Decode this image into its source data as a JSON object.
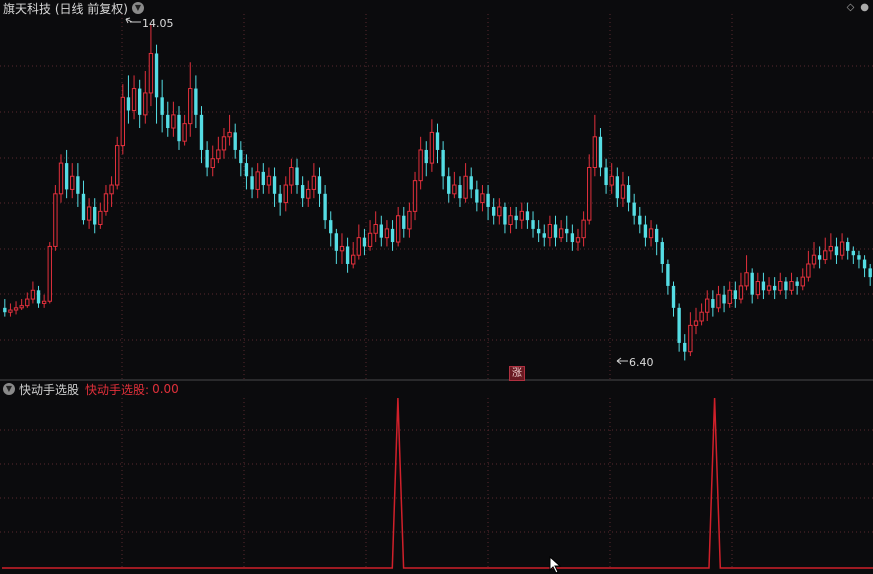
{
  "main_chart": {
    "title": "旗天科技 (日线 前复权)",
    "high_label": "14.05",
    "low_label": "6.40",
    "event_badge": "涨"
  },
  "indicator": {
    "name": "快动手选股",
    "value_label": "快动手选股:",
    "value": "0.00"
  },
  "colors": {
    "up": "#e2303c",
    "down": "#55dde4",
    "signal": "#d0202a",
    "grid": "#5a2a2e",
    "background": "#0b0b0d"
  },
  "chart_data": [
    {
      "type": "candlestick",
      "title": "旗天科技 (日线 前复权)",
      "ylim": [
        6.0,
        14.3
      ],
      "annotations": [
        "14.05",
        "6.40"
      ],
      "candles": [
        [
          7.6,
          7.5,
          7.8,
          7.4
        ],
        [
          7.5,
          7.55,
          7.7,
          7.4
        ],
        [
          7.55,
          7.6,
          7.75,
          7.45
        ],
        [
          7.6,
          7.65,
          7.8,
          7.55
        ],
        [
          7.65,
          7.8,
          7.95,
          7.6
        ],
        [
          7.8,
          8.0,
          8.2,
          7.7
        ],
        [
          8.0,
          7.7,
          8.1,
          7.6
        ],
        [
          7.7,
          7.75,
          7.9,
          7.6
        ],
        [
          7.75,
          9.0,
          9.1,
          7.7
        ],
        [
          9.0,
          10.2,
          10.4,
          8.9
        ],
        [
          10.2,
          10.9,
          11.1,
          10.0
        ],
        [
          10.9,
          10.3,
          11.2,
          10.1
        ],
        [
          10.3,
          10.6,
          10.9,
          10.1
        ],
        [
          10.6,
          10.2,
          10.9,
          9.9
        ],
        [
          10.2,
          9.6,
          10.5,
          9.5
        ],
        [
          9.6,
          9.9,
          10.1,
          9.4
        ],
        [
          9.9,
          9.5,
          10.1,
          9.3
        ],
        [
          9.5,
          9.8,
          10.0,
          9.4
        ],
        [
          9.8,
          10.2,
          10.4,
          9.7
        ],
        [
          10.2,
          10.4,
          10.6,
          9.9
        ],
        [
          10.4,
          11.3,
          11.5,
          10.3
        ],
        [
          11.3,
          12.4,
          12.7,
          11.1
        ],
        [
          12.4,
          12.1,
          12.9,
          11.8
        ],
        [
          12.1,
          12.6,
          12.9,
          11.9
        ],
        [
          12.6,
          12.0,
          12.8,
          11.7
        ],
        [
          12.0,
          12.5,
          13.0,
          11.8
        ],
        [
          12.5,
          13.4,
          14.05,
          12.2
        ],
        [
          13.4,
          12.4,
          13.6,
          11.8
        ],
        [
          12.4,
          12.0,
          12.8,
          11.6
        ],
        [
          12.0,
          11.7,
          12.3,
          11.5
        ],
        [
          11.7,
          12.0,
          12.3,
          11.5
        ],
        [
          12.0,
          11.4,
          12.2,
          11.2
        ],
        [
          11.4,
          11.8,
          12.0,
          11.3
        ],
        [
          11.8,
          12.6,
          13.2,
          11.5
        ],
        [
          12.6,
          12.0,
          12.9,
          11.7
        ],
        [
          12.0,
          11.2,
          12.2,
          10.9
        ],
        [
          11.2,
          10.8,
          11.4,
          10.6
        ],
        [
          10.8,
          11.0,
          11.3,
          10.6
        ],
        [
          11.0,
          11.2,
          11.5,
          10.9
        ],
        [
          11.2,
          11.5,
          11.7,
          11.0
        ],
        [
          11.5,
          11.6,
          12.0,
          11.3
        ],
        [
          11.6,
          11.2,
          11.8,
          11.0
        ],
        [
          11.2,
          10.9,
          11.4,
          10.6
        ],
        [
          10.9,
          10.6,
          11.1,
          10.3
        ],
        [
          10.6,
          10.3,
          10.8,
          10.1
        ],
        [
          10.3,
          10.7,
          10.9,
          10.1
        ],
        [
          10.7,
          10.4,
          10.9,
          10.2
        ],
        [
          10.4,
          10.6,
          10.8,
          10.2
        ],
        [
          10.6,
          10.2,
          10.8,
          9.9
        ],
        [
          10.2,
          10.0,
          10.4,
          9.7
        ],
        [
          10.0,
          10.4,
          10.6,
          9.8
        ],
        [
          10.4,
          10.8,
          11.0,
          10.2
        ],
        [
          10.8,
          10.4,
          11.0,
          10.2
        ],
        [
          10.4,
          10.1,
          10.6,
          9.9
        ],
        [
          10.1,
          10.3,
          10.5,
          9.9
        ],
        [
          10.3,
          10.6,
          10.9,
          10.1
        ],
        [
          10.6,
          10.2,
          10.8,
          9.9
        ],
        [
          10.2,
          9.6,
          10.4,
          9.4
        ],
        [
          9.6,
          9.3,
          9.8,
          9.0
        ],
        [
          9.3,
          8.9,
          9.4,
          8.6
        ],
        [
          8.9,
          9.0,
          9.3,
          8.6
        ],
        [
          9.0,
          8.6,
          9.2,
          8.4
        ],
        [
          8.6,
          8.8,
          9.1,
          8.5
        ],
        [
          8.8,
          9.2,
          9.5,
          8.7
        ],
        [
          9.2,
          9.0,
          9.4,
          8.8
        ],
        [
          9.0,
          9.3,
          9.6,
          8.9
        ],
        [
          9.3,
          9.5,
          9.8,
          9.1
        ],
        [
          9.5,
          9.2,
          9.7,
          9.0
        ],
        [
          9.2,
          9.4,
          9.6,
          9.0
        ],
        [
          9.4,
          9.1,
          9.6,
          8.9
        ],
        [
          9.1,
          9.7,
          9.9,
          9.0
        ],
        [
          9.7,
          9.4,
          9.9,
          9.2
        ],
        [
          9.4,
          9.8,
          10.0,
          9.2
        ],
        [
          9.8,
          10.5,
          10.7,
          9.6
        ],
        [
          10.5,
          11.2,
          11.5,
          10.3
        ],
        [
          11.2,
          10.9,
          11.4,
          10.6
        ],
        [
          10.9,
          11.6,
          11.9,
          10.7
        ],
        [
          11.6,
          11.2,
          11.8,
          10.9
        ],
        [
          11.2,
          10.6,
          11.4,
          10.3
        ],
        [
          10.6,
          10.2,
          10.8,
          10.0
        ],
        [
          10.2,
          10.4,
          10.7,
          10.1
        ],
        [
          10.4,
          10.1,
          10.6,
          9.9
        ],
        [
          10.1,
          10.6,
          10.9,
          10.0
        ],
        [
          10.6,
          10.3,
          10.8,
          10.1
        ],
        [
          10.3,
          10.0,
          10.5,
          9.8
        ],
        [
          10.0,
          10.2,
          10.4,
          9.8
        ],
        [
          10.2,
          9.9,
          10.4,
          9.6
        ],
        [
          9.9,
          9.7,
          10.1,
          9.5
        ],
        [
          9.7,
          9.9,
          10.1,
          9.5
        ],
        [
          9.9,
          9.5,
          10.0,
          9.3
        ],
        [
          9.5,
          9.7,
          9.9,
          9.3
        ],
        [
          9.7,
          9.6,
          9.9,
          9.4
        ],
        [
          9.6,
          9.8,
          10.0,
          9.4
        ],
        [
          9.8,
          9.6,
          10.0,
          9.4
        ],
        [
          9.6,
          9.4,
          9.8,
          9.2
        ],
        [
          9.4,
          9.3,
          9.6,
          9.1
        ],
        [
          9.3,
          9.2,
          9.5,
          9.0
        ],
        [
          9.2,
          9.5,
          9.7,
          9.0
        ],
        [
          9.5,
          9.2,
          9.7,
          9.0
        ],
        [
          9.2,
          9.4,
          9.6,
          9.1
        ],
        [
          9.4,
          9.3,
          9.7,
          9.1
        ],
        [
          9.3,
          9.1,
          9.5,
          8.9
        ],
        [
          9.1,
          9.2,
          9.4,
          8.9
        ],
        [
          9.2,
          9.6,
          9.8,
          9.0
        ],
        [
          9.6,
          10.8,
          11.1,
          9.5
        ],
        [
          10.8,
          11.5,
          12.0,
          10.6
        ],
        [
          11.5,
          10.8,
          11.7,
          10.6
        ],
        [
          10.8,
          10.4,
          11.0,
          10.2
        ],
        [
          10.4,
          10.6,
          10.9,
          10.2
        ],
        [
          10.6,
          10.1,
          10.8,
          9.9
        ],
        [
          10.1,
          10.4,
          10.7,
          9.9
        ],
        [
          10.4,
          10.0,
          10.6,
          9.8
        ],
        [
          10.0,
          9.7,
          10.2,
          9.5
        ],
        [
          9.7,
          9.5,
          9.9,
          9.3
        ],
        [
          9.5,
          9.2,
          9.7,
          9.0
        ],
        [
          9.2,
          9.4,
          9.6,
          9.0
        ],
        [
          9.4,
          9.1,
          9.5,
          8.8
        ],
        [
          9.1,
          8.6,
          9.2,
          8.4
        ],
        [
          8.6,
          8.1,
          8.7,
          7.9
        ],
        [
          8.1,
          7.6,
          8.2,
          7.4
        ],
        [
          7.6,
          6.8,
          7.7,
          6.6
        ],
        [
          6.8,
          6.6,
          7.0,
          6.4
        ],
        [
          6.6,
          7.2,
          7.5,
          6.5
        ],
        [
          7.2,
          7.3,
          7.6,
          7.0
        ],
        [
          7.3,
          7.5,
          7.7,
          7.2
        ],
        [
          7.5,
          7.8,
          8.0,
          7.3
        ],
        [
          7.8,
          7.6,
          8.0,
          7.4
        ],
        [
          7.6,
          7.9,
          8.1,
          7.5
        ],
        [
          7.9,
          7.7,
          8.1,
          7.5
        ],
        [
          7.7,
          8.0,
          8.2,
          7.6
        ],
        [
          8.0,
          7.8,
          8.2,
          7.6
        ],
        [
          7.8,
          8.1,
          8.4,
          7.7
        ],
        [
          8.1,
          8.4,
          8.8,
          8.0
        ],
        [
          8.4,
          7.9,
          8.5,
          7.7
        ],
        [
          7.9,
          8.2,
          8.4,
          7.8
        ],
        [
          8.2,
          8.0,
          8.4,
          7.8
        ],
        [
          8.0,
          8.1,
          8.3,
          7.9
        ],
        [
          8.1,
          8.0,
          8.3,
          7.8
        ],
        [
          8.0,
          8.2,
          8.4,
          7.9
        ],
        [
          8.2,
          8.0,
          8.3,
          7.8
        ],
        [
          8.0,
          8.2,
          8.4,
          7.9
        ],
        [
          8.2,
          8.1,
          8.3,
          7.9
        ],
        [
          8.1,
          8.3,
          8.5,
          8.0
        ],
        [
          8.3,
          8.6,
          8.9,
          8.2
        ],
        [
          8.6,
          8.8,
          9.1,
          8.5
        ],
        [
          8.8,
          8.7,
          9.0,
          8.5
        ],
        [
          8.7,
          8.9,
          9.2,
          8.6
        ],
        [
          8.9,
          9.0,
          9.3,
          8.7
        ],
        [
          9.0,
          8.8,
          9.2,
          8.6
        ],
        [
          8.8,
          9.1,
          9.3,
          8.7
        ],
        [
          9.1,
          8.9,
          9.2,
          8.7
        ],
        [
          8.9,
          8.8,
          9.0,
          8.6
        ],
        [
          8.8,
          8.7,
          8.9,
          8.5
        ],
        [
          8.7,
          8.5,
          8.8,
          8.3
        ],
        [
          8.5,
          8.3,
          8.6,
          8.1
        ]
      ]
    },
    {
      "type": "line",
      "name": "快动手选股",
      "ylim": [
        0,
        1
      ],
      "values_note": "",
      "x": [
        0,
        69,
        70,
        71,
        125,
        126,
        127,
        155
      ],
      "y": [
        0,
        0,
        1,
        0,
        0,
        1,
        0,
        0
      ]
    }
  ]
}
